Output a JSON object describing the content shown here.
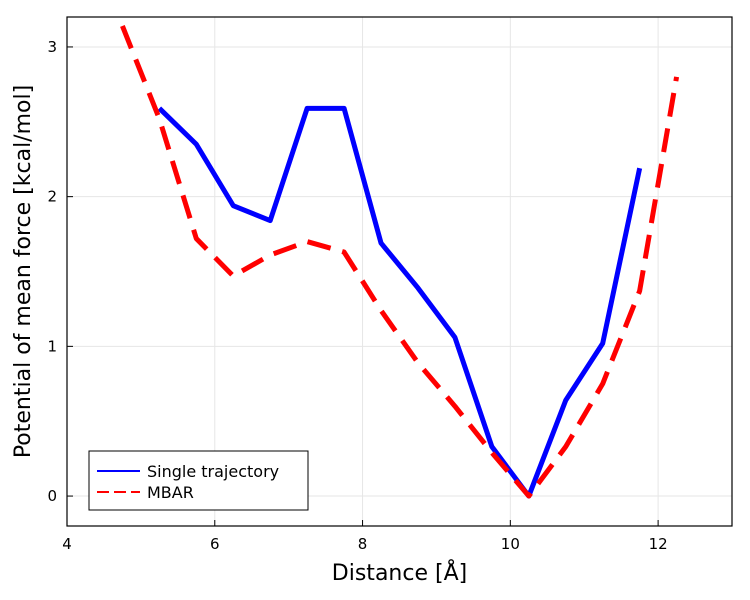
{
  "chart_data": {
    "type": "line",
    "title": "",
    "xlabel": "Distance [Å]",
    "ylabel": "Potential of mean force [kcal/mol]",
    "xlim": [
      4,
      13
    ],
    "ylim": [
      -0.2,
      3.2
    ],
    "xticks": [
      "4",
      "6",
      "8",
      "10",
      "12"
    ],
    "yticks": [
      "0",
      "1",
      "2",
      "3"
    ],
    "grid": true,
    "legend_position": "bottom-left",
    "series": [
      {
        "name": "Single trajectory",
        "color": "#0000ff",
        "style": "solid",
        "x": [
          5.25,
          5.75,
          6.25,
          6.75,
          7.25,
          7.75,
          8.25,
          8.75,
          9.25,
          9.75,
          10.25,
          10.75,
          11.25,
          11.75
        ],
        "y": [
          2.59,
          2.35,
          1.94,
          1.84,
          2.59,
          2.59,
          1.69,
          1.39,
          1.06,
          0.33,
          0.0,
          0.64,
          1.02,
          2.19
        ]
      },
      {
        "name": "MBAR",
        "color": "#ff0000",
        "style": "dashed",
        "x": [
          4.75,
          5.25,
          5.75,
          6.25,
          6.75,
          7.25,
          7.75,
          8.25,
          8.75,
          9.25,
          9.75,
          10.25,
          10.75,
          11.25,
          11.75,
          12.25
        ],
        "y": [
          3.14,
          2.52,
          1.72,
          1.47,
          1.61,
          1.7,
          1.63,
          1.24,
          0.89,
          0.6,
          0.29,
          0.0,
          0.33,
          0.75,
          1.37,
          2.8
        ]
      }
    ]
  }
}
